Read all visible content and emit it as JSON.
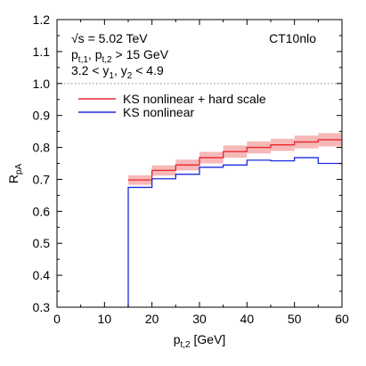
{
  "chart_data": {
    "type": "line",
    "xlabel_base": "p",
    "xlabel_sub": "t,2",
    "xlabel_unit": " [GeV]",
    "ylabel_base": "R",
    "ylabel_sub": "pA",
    "xlim": [
      0,
      60
    ],
    "ylim": [
      0.3,
      1.2
    ],
    "x_ticks": [
      "0",
      "10",
      "20",
      "30",
      "40",
      "50",
      "60"
    ],
    "y_ticks": [
      "0.3",
      "0.4",
      "0.5",
      "0.6",
      "0.7",
      "0.8",
      "0.9",
      "1.0",
      "1.1",
      "1.2"
    ],
    "reference_line": {
      "y": 1.0,
      "style": "dotted"
    },
    "bin_edges": [
      15,
      20,
      25,
      30,
      35,
      40,
      45,
      50,
      55,
      60
    ],
    "series": [
      {
        "name": "KS nonlinear + hard scale",
        "color": "#e8262b",
        "band_color": "#f6b8b8",
        "values": [
          0.698,
          0.728,
          0.745,
          0.768,
          0.787,
          0.8,
          0.808,
          0.817,
          0.824
        ],
        "band_low": [
          0.683,
          0.712,
          0.728,
          0.75,
          0.768,
          0.781,
          0.789,
          0.797,
          0.803
        ],
        "band_high": [
          0.713,
          0.744,
          0.762,
          0.786,
          0.806,
          0.819,
          0.827,
          0.837,
          0.845
        ]
      },
      {
        "name": "KS nonlinear",
        "color": "#1c2bdc",
        "values": [
          0.675,
          0.702,
          0.716,
          0.738,
          0.745,
          0.76,
          0.758,
          0.768,
          0.75
        ],
        "drop_to_axis_at_start": true
      }
    ],
    "annotations": {
      "line1_prefix": "√s = 5.02 TeV",
      "line2_a": "p",
      "line2_a_sub": "t,1",
      "line2_b": ", p",
      "line2_b_sub": "t,2",
      "line2_tail": " > 15 GeV",
      "line3_a": "3.2 < y",
      "line3_a_sub": "1",
      "line3_b": ", y",
      "line3_b_sub": "2",
      "line3_tail": " < 4.9",
      "pdf_label": "CT10nlo"
    },
    "legend_position": "top-left",
    "grid": false
  }
}
